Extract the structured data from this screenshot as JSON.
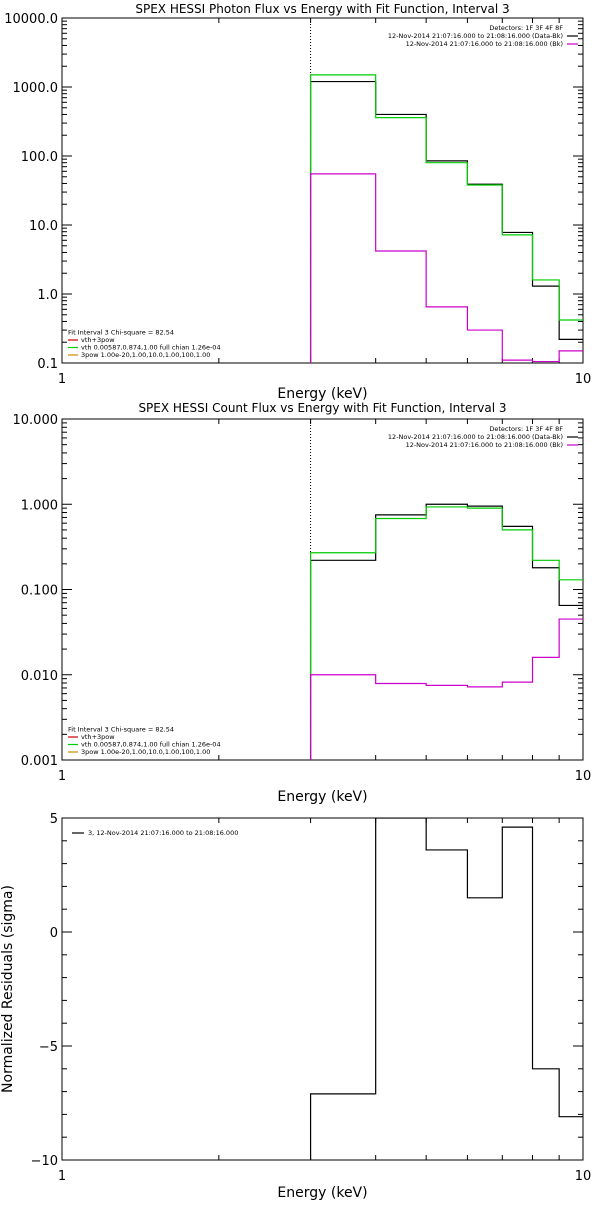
{
  "chart_data": [
    {
      "type": "line",
      "title": "SPEX HESSI Photon Flux vs Energy with Fit Function, Interval 3",
      "xlabel": "Energy (keV)",
      "ylabel": "",
      "x_scale": "log",
      "y_scale": "log",
      "xlim": [
        1,
        10
      ],
      "ylim": [
        0.1,
        10000
      ],
      "x_ticks": [
        {
          "v": 1,
          "label": "1"
        },
        {
          "v": 10,
          "label": "10"
        }
      ],
      "y_ticks": [
        {
          "v": 10000,
          "label": "10000.0"
        },
        {
          "v": 1000,
          "label": "1000.0"
        },
        {
          "v": 100,
          "label": "100.0"
        },
        {
          "v": 10,
          "label": "10.0"
        },
        {
          "v": 1,
          "label": "1.0"
        },
        {
          "v": 0.1,
          "label": "0.1"
        }
      ],
      "vline_x": 3.0,
      "legend_top": [
        {
          "text": "Detectors: 1F 3F 4F 8F",
          "color": ""
        },
        {
          "text": "12-Nov-2014 21:07:16.000 to 21:08:16.000 (Data-Bk)",
          "color": "#000000"
        },
        {
          "text": "12-Nov-2014 21:07:16.000 to 21:08:16.000 (Bk)",
          "color": "#cc00cc"
        }
      ],
      "legend_bottom": [
        {
          "text": "Fit Interval 3   Chi-square = 82.54",
          "color": ""
        },
        {
          "text": "vth+3pow",
          "color": "#cc0000"
        },
        {
          "text": "vth 0.00587,0.874,1.00  full chian 1.26e-04",
          "color": "#00cc00"
        },
        {
          "text": "3pow 1.00e-20,1.00,10.0,1.00,100,1.00",
          "color": "#cc8800"
        }
      ],
      "series": [
        {
          "color": "#000000",
          "edges": [
            3.0,
            4.0,
            5.0,
            6.0,
            7.0,
            8.0,
            9.0,
            10.0
          ],
          "values": [
            1200,
            400,
            85,
            39,
            7.8,
            1.3,
            0.22
          ],
          "y_floor": 0.1
        },
        {
          "color": "#00cc00",
          "edges": [
            3.0,
            4.0,
            5.0,
            6.0,
            7.0,
            8.0,
            9.0,
            10.0
          ],
          "values": [
            1500,
            360,
            80,
            38,
            7.2,
            1.6,
            0.42
          ],
          "y_floor": 0.1
        },
        {
          "color": "#cc00cc",
          "edges": [
            3.0,
            4.0,
            5.0,
            6.0,
            7.0,
            8.0,
            9.0,
            10.0
          ],
          "values": [
            55,
            4.2,
            0.65,
            0.3,
            0.11,
            0.105,
            0.15
          ],
          "y_floor": 0.1
        }
      ]
    },
    {
      "type": "line",
      "title": "SPEX HESSI Count Flux vs Energy with Fit Function, Interval 3",
      "xlabel": "Energy (keV)",
      "ylabel": "",
      "x_scale": "log",
      "y_scale": "log",
      "xlim": [
        1,
        10
      ],
      "ylim": [
        0.001,
        10
      ],
      "x_ticks": [
        {
          "v": 1,
          "label": "1"
        },
        {
          "v": 10,
          "label": "10"
        }
      ],
      "y_ticks": [
        {
          "v": 10,
          "label": "10.000"
        },
        {
          "v": 1,
          "label": "1.000"
        },
        {
          "v": 0.1,
          "label": "0.100"
        },
        {
          "v": 0.01,
          "label": "0.010"
        },
        {
          "v": 0.001,
          "label": "0.001"
        }
      ],
      "vline_x": 3.0,
      "legend_top": [
        {
          "text": "Detectors: 1F 3F 4F 8F",
          "color": ""
        },
        {
          "text": "12-Nov-2014 21:07:16.000 to 21:08:16.000 (Data-Bk)",
          "color": "#000000"
        },
        {
          "text": "12-Nov-2014 21:07:16.000 to 21:08:16.000 (Bk)",
          "color": "#cc00cc"
        }
      ],
      "legend_bottom": [
        {
          "text": "Fit Interval 3   Chi-square = 82.54",
          "color": ""
        },
        {
          "text": "vth+3pow",
          "color": "#cc0000"
        },
        {
          "text": "vth 0.00587,0.874,1.00  full chian 1.26e-04",
          "color": "#00cc00"
        },
        {
          "text": "3pow 1.00e-20,1.00,10.0,1.00,100,1.00",
          "color": "#cc8800"
        }
      ],
      "series": [
        {
          "color": "#000000",
          "edges": [
            3.0,
            4.0,
            5.0,
            6.0,
            7.0,
            8.0,
            9.0,
            10.0
          ],
          "values": [
            0.22,
            0.75,
            1.0,
            0.95,
            0.55,
            0.18,
            0.065
          ],
          "y_floor": 0.001
        },
        {
          "color": "#00cc00",
          "edges": [
            3.0,
            4.0,
            5.0,
            6.0,
            7.0,
            8.0,
            9.0,
            10.0
          ],
          "values": [
            0.27,
            0.68,
            0.93,
            0.9,
            0.5,
            0.22,
            0.13
          ],
          "y_floor": 0.001
        },
        {
          "color": "#cc00cc",
          "edges": [
            3.0,
            4.0,
            5.0,
            6.0,
            7.0,
            8.0,
            9.0,
            10.0
          ],
          "values": [
            0.01,
            0.0079,
            0.0075,
            0.0072,
            0.0082,
            0.016,
            0.045
          ],
          "y_floor": 0.001
        }
      ]
    },
    {
      "type": "line",
      "title": "",
      "xlabel": "Energy (keV)",
      "ylabel": "Normalized Residuals (sigma)",
      "x_scale": "log",
      "y_scale": "linear",
      "xlim": [
        1,
        10
      ],
      "ylim": [
        -10,
        5
      ],
      "x_ticks": [
        {
          "v": 1,
          "label": "1"
        },
        {
          "v": 10,
          "label": "10"
        }
      ],
      "y_ticks": [
        {
          "v": 5,
          "label": "5"
        },
        {
          "v": 0,
          "label": "0"
        },
        {
          "v": -5,
          "label": "−5"
        },
        {
          "v": -10,
          "label": "−10"
        }
      ],
      "legend_top_left": [
        {
          "text": "3, 12-Nov-2014 21:07:16.000 to 21:08:16.000",
          "color": "#000000"
        }
      ],
      "series": [
        {
          "color": "#000000",
          "edges": [
            3.0,
            4.0,
            5.0,
            6.0,
            7.0,
            8.0,
            9.0,
            10.0
          ],
          "values": [
            -7.1,
            5.0,
            3.6,
            1.5,
            4.6,
            -6.0,
            -8.1
          ],
          "y_floor": -10
        }
      ]
    }
  ]
}
